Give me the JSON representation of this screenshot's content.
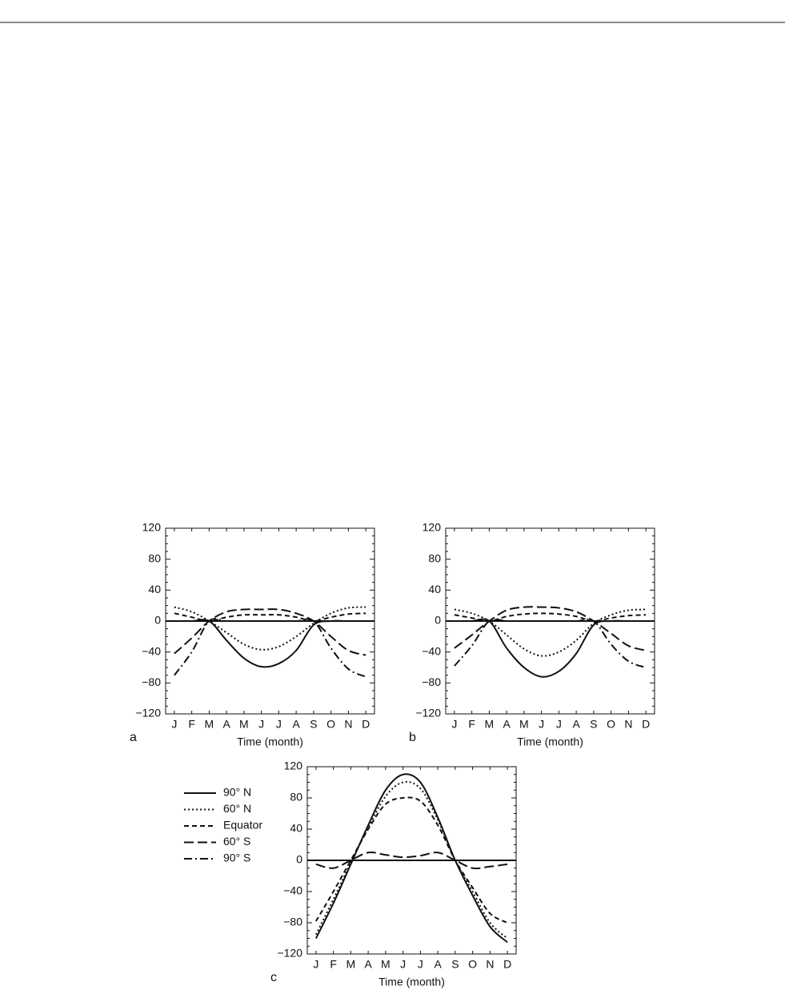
{
  "chart_data": [
    {
      "type": "line",
      "label": "a",
      "x_label": "Time (month)",
      "categories": [
        "J",
        "F",
        "M",
        "A",
        "M",
        "J",
        "J",
        "A",
        "S",
        "O",
        "N",
        "D"
      ],
      "ylim": [
        -120,
        120
      ],
      "yticks": [
        {
          "value": -120,
          "label": "−120"
        },
        {
          "value": -80,
          "label": "−80"
        },
        {
          "value": -40,
          "label": "−40"
        },
        0,
        40,
        80,
        120
      ],
      "zero_line": true,
      "series": [
        {
          "name": "90° N",
          "color": "#111111",
          "style": "solid",
          "values": [
            0,
            0,
            0,
            -25,
            -48,
            -59,
            -55,
            -38,
            -5,
            0,
            0,
            0
          ]
        },
        {
          "name": "60° N",
          "color": "#111111",
          "style": "dotted",
          "values": [
            18,
            12,
            0,
            -15,
            -30,
            -37,
            -33,
            -20,
            -3,
            10,
            17,
            18
          ]
        },
        {
          "name": "Equator",
          "color": "#111111",
          "style": "dashed",
          "values": [
            10,
            5,
            0,
            5,
            8,
            8,
            8,
            5,
            0,
            5,
            9,
            10
          ]
        },
        {
          "name": "60° S",
          "color": "#111111",
          "style": "longdash",
          "values": [
            -42,
            -22,
            0,
            12,
            15,
            15,
            15,
            10,
            0,
            -20,
            -38,
            -44
          ]
        },
        {
          "name": "90° S",
          "color": "#111111",
          "style": "dashdot",
          "values": [
            -70,
            -40,
            0,
            0,
            0,
            0,
            0,
            0,
            0,
            -35,
            -62,
            -72
          ]
        }
      ]
    },
    {
      "type": "line",
      "label": "b",
      "x_label": "Time (month)",
      "categories": [
        "J",
        "F",
        "M",
        "A",
        "M",
        "J",
        "J",
        "A",
        "S",
        "O",
        "N",
        "D"
      ],
      "ylim": [
        -120,
        120
      ],
      "yticks": [
        {
          "value": -120,
          "label": "−120"
        },
        {
          "value": -80,
          "label": "−80"
        },
        {
          "value": -40,
          "label": "−40"
        },
        0,
        40,
        80,
        120
      ],
      "zero_line": true,
      "series": [
        {
          "name": "90° N",
          "color": "#111111",
          "style": "solid",
          "values": [
            0,
            0,
            0,
            -35,
            -60,
            -72,
            -65,
            -42,
            -5,
            0,
            0,
            0
          ]
        },
        {
          "name": "60° N",
          "color": "#111111",
          "style": "dotted",
          "values": [
            15,
            10,
            0,
            -18,
            -36,
            -45,
            -40,
            -25,
            -3,
            8,
            14,
            15
          ]
        },
        {
          "name": "Equator",
          "color": "#111111",
          "style": "dashed",
          "values": [
            8,
            4,
            0,
            6,
            9,
            10,
            9,
            6,
            0,
            4,
            7,
            8
          ]
        },
        {
          "name": "60° S",
          "color": "#111111",
          "style": "longdash",
          "values": [
            -35,
            -18,
            0,
            14,
            18,
            18,
            17,
            12,
            0,
            -16,
            -32,
            -38
          ]
        },
        {
          "name": "90° S",
          "color": "#111111",
          "style": "dashdot",
          "values": [
            -58,
            -32,
            0,
            0,
            0,
            0,
            0,
            0,
            0,
            -30,
            -52,
            -60
          ]
        }
      ]
    },
    {
      "type": "line",
      "label": "c",
      "x_label": "Time (month)",
      "legend": "left",
      "categories": [
        "J",
        "F",
        "M",
        "A",
        "M",
        "J",
        "J",
        "A",
        "S",
        "O",
        "N",
        "D"
      ],
      "ylim": [
        -120,
        120
      ],
      "yticks": [
        {
          "value": -120,
          "label": "−120"
        },
        {
          "value": -80,
          "label": "−80"
        },
        {
          "value": -40,
          "label": "−40"
        },
        0,
        40,
        80,
        120
      ],
      "zero_line": true,
      "series": [
        {
          "name": "90° N",
          "color": "#111111",
          "style": "solid",
          "values": [
            -100,
            -55,
            -5,
            45,
            90,
            110,
            100,
            55,
            0,
            -45,
            -85,
            -105
          ]
        },
        {
          "name": "60° N",
          "color": "#111111",
          "style": "dotted",
          "values": [
            -95,
            -50,
            -3,
            42,
            82,
            100,
            92,
            52,
            0,
            -40,
            -80,
            -100
          ]
        },
        {
          "name": "Equator",
          "color": "#111111",
          "style": "dashed",
          "values": [
            -78,
            -40,
            0,
            40,
            72,
            80,
            76,
            45,
            0,
            -35,
            -68,
            -80
          ]
        },
        {
          "name": "60° S",
          "color": "#111111",
          "style": "longdash",
          "values": [
            -5,
            -10,
            0,
            10,
            7,
            4,
            6,
            10,
            0,
            -10,
            -8,
            -5
          ]
        },
        {
          "name": "90° S",
          "color": "#111111",
          "style": "dashdot",
          "values": [
            0,
            0,
            0,
            0,
            0,
            0,
            0,
            0,
            0,
            0,
            0,
            0
          ]
        }
      ]
    }
  ]
}
